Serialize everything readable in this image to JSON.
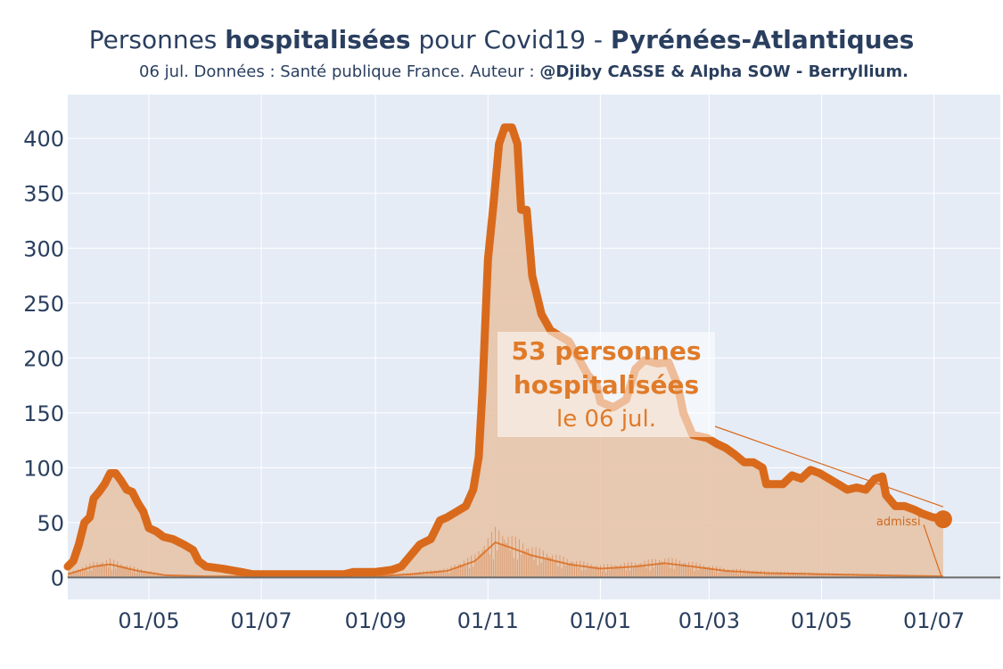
{
  "header": {
    "title_prefix": "Personnes ",
    "title_bold1": "hospitalisées",
    "title_mid": " pour Covid19 - ",
    "title_bold2": "Pyrénées-Atlantiques",
    "subtitle_plain": "06 jul. Données : Santé publique France. Auteur : ",
    "subtitle_bold": "@Djiby CASSE & Alpha SOW - Berryllium."
  },
  "annotation": {
    "line1": "53 personnes",
    "line2": "hospitalisées",
    "line3": "le 06 jul.",
    "small_label": "admissi"
  },
  "colors": {
    "main_line": "#d96a1c",
    "fill": "#e7c2a3",
    "plot_bg": "#e5ecf6",
    "grid": "#ffffff",
    "text": "#2a3f5f"
  },
  "chart_data": {
    "type": "area",
    "ylim": [
      -20,
      440
    ],
    "y_ticks": [
      0,
      50,
      100,
      150,
      200,
      250,
      300,
      350,
      400
    ],
    "x_start": "2020-03-18",
    "x_end": "2021-08-06",
    "x_ticks": [
      {
        "date": "2020-05-01",
        "label": "01/05"
      },
      {
        "date": "2020-07-01",
        "label": "01/07"
      },
      {
        "date": "2020-09-01",
        "label": "01/09"
      },
      {
        "date": "2020-11-01",
        "label": "01/11"
      },
      {
        "date": "2021-01-01",
        "label": "01/01"
      },
      {
        "date": "2021-03-01",
        "label": "01/03"
      },
      {
        "date": "2021-05-01",
        "label": "01/05"
      },
      {
        "date": "2021-07-01",
        "label": "01/07"
      }
    ],
    "series": [
      {
        "name": "hospitalisées",
        "points": [
          [
            "2020-03-18",
            10
          ],
          [
            "2020-03-21",
            15
          ],
          [
            "2020-03-24",
            30
          ],
          [
            "2020-03-27",
            50
          ],
          [
            "2020-03-30",
            55
          ],
          [
            "2020-04-01",
            72
          ],
          [
            "2020-04-04",
            78
          ],
          [
            "2020-04-07",
            85
          ],
          [
            "2020-04-10",
            95
          ],
          [
            "2020-04-13",
            95
          ],
          [
            "2020-04-16",
            88
          ],
          [
            "2020-04-19",
            80
          ],
          [
            "2020-04-22",
            78
          ],
          [
            "2020-04-25",
            68
          ],
          [
            "2020-04-28",
            60
          ],
          [
            "2020-05-01",
            45
          ],
          [
            "2020-05-05",
            42
          ],
          [
            "2020-05-09",
            37
          ],
          [
            "2020-05-14",
            35
          ],
          [
            "2020-05-20",
            30
          ],
          [
            "2020-05-25",
            25
          ],
          [
            "2020-05-28",
            15
          ],
          [
            "2020-06-01",
            10
          ],
          [
            "2020-06-10",
            8
          ],
          [
            "2020-06-20",
            5
          ],
          [
            "2020-06-26",
            3
          ],
          [
            "2020-07-10",
            3
          ],
          [
            "2020-07-30",
            3
          ],
          [
            "2020-08-15",
            3
          ],
          [
            "2020-08-20",
            5
          ],
          [
            "2020-08-30",
            5
          ],
          [
            "2020-09-01",
            5
          ],
          [
            "2020-09-10",
            7
          ],
          [
            "2020-09-15",
            10
          ],
          [
            "2020-09-20",
            20
          ],
          [
            "2020-09-25",
            30
          ],
          [
            "2020-10-01",
            35
          ],
          [
            "2020-10-06",
            52
          ],
          [
            "2020-10-10",
            55
          ],
          [
            "2020-10-15",
            60
          ],
          [
            "2020-10-20",
            65
          ],
          [
            "2020-10-24",
            80
          ],
          [
            "2020-10-27",
            110
          ],
          [
            "2020-10-29",
            170
          ],
          [
            "2020-11-01",
            290
          ],
          [
            "2020-11-04",
            340
          ],
          [
            "2020-11-07",
            395
          ],
          [
            "2020-11-10",
            410
          ],
          [
            "2020-11-14",
            410
          ],
          [
            "2020-11-17",
            395
          ],
          [
            "2020-11-19",
            335
          ],
          [
            "2020-11-22",
            335
          ],
          [
            "2020-11-25",
            275
          ],
          [
            "2020-11-30",
            240
          ],
          [
            "2020-12-05",
            225
          ],
          [
            "2020-12-10",
            220
          ],
          [
            "2020-12-15",
            215
          ],
          [
            "2020-12-20",
            200
          ],
          [
            "2020-12-25",
            185
          ],
          [
            "2020-12-30",
            175
          ],
          [
            "2021-01-01",
            160
          ],
          [
            "2021-01-08",
            155
          ],
          [
            "2021-01-15",
            162
          ],
          [
            "2021-01-20",
            190
          ],
          [
            "2021-01-25",
            198
          ],
          [
            "2021-02-01",
            195
          ],
          [
            "2021-02-07",
            196
          ],
          [
            "2021-02-12",
            175
          ],
          [
            "2021-02-15",
            150
          ],
          [
            "2021-02-20",
            130
          ],
          [
            "2021-02-28",
            127
          ],
          [
            "2021-03-05",
            122
          ],
          [
            "2021-03-10",
            118
          ],
          [
            "2021-03-15",
            112
          ],
          [
            "2021-03-20",
            105
          ],
          [
            "2021-03-25",
            105
          ],
          [
            "2021-03-30",
            100
          ],
          [
            "2021-04-01",
            85
          ],
          [
            "2021-04-05",
            85
          ],
          [
            "2021-04-10",
            85
          ],
          [
            "2021-04-15",
            93
          ],
          [
            "2021-04-20",
            90
          ],
          [
            "2021-04-25",
            98
          ],
          [
            "2021-04-30",
            95
          ],
          [
            "2021-05-05",
            90
          ],
          [
            "2021-05-10",
            85
          ],
          [
            "2021-05-15",
            80
          ],
          [
            "2021-05-20",
            82
          ],
          [
            "2021-05-25",
            80
          ],
          [
            "2021-05-30",
            90
          ],
          [
            "2021-06-03",
            92
          ],
          [
            "2021-06-05",
            75
          ],
          [
            "2021-06-10",
            65
          ],
          [
            "2021-06-15",
            65
          ],
          [
            "2021-06-20",
            62
          ],
          [
            "2021-06-25",
            58
          ],
          [
            "2021-06-30",
            55
          ],
          [
            "2021-07-06",
            53
          ]
        ]
      },
      {
        "name": "admissions",
        "points": [
          [
            "2020-03-18",
            3
          ],
          [
            "2020-04-01",
            10
          ],
          [
            "2020-04-10",
            12
          ],
          [
            "2020-04-25",
            6
          ],
          [
            "2020-05-10",
            2
          ],
          [
            "2020-06-01",
            1
          ],
          [
            "2020-08-01",
            1
          ],
          [
            "2020-09-01",
            1
          ],
          [
            "2020-09-20",
            3
          ],
          [
            "2020-10-10",
            6
          ],
          [
            "2020-10-25",
            15
          ],
          [
            "2020-11-05",
            32
          ],
          [
            "2020-11-12",
            28
          ],
          [
            "2020-11-25",
            20
          ],
          [
            "2020-12-15",
            12
          ],
          [
            "2021-01-01",
            8
          ],
          [
            "2021-01-20",
            10
          ],
          [
            "2021-02-05",
            13
          ],
          [
            "2021-02-20",
            10
          ],
          [
            "2021-03-10",
            6
          ],
          [
            "2021-04-01",
            4
          ],
          [
            "2021-05-01",
            3
          ],
          [
            "2021-06-01",
            2
          ],
          [
            "2021-07-06",
            1
          ]
        ]
      }
    ]
  }
}
